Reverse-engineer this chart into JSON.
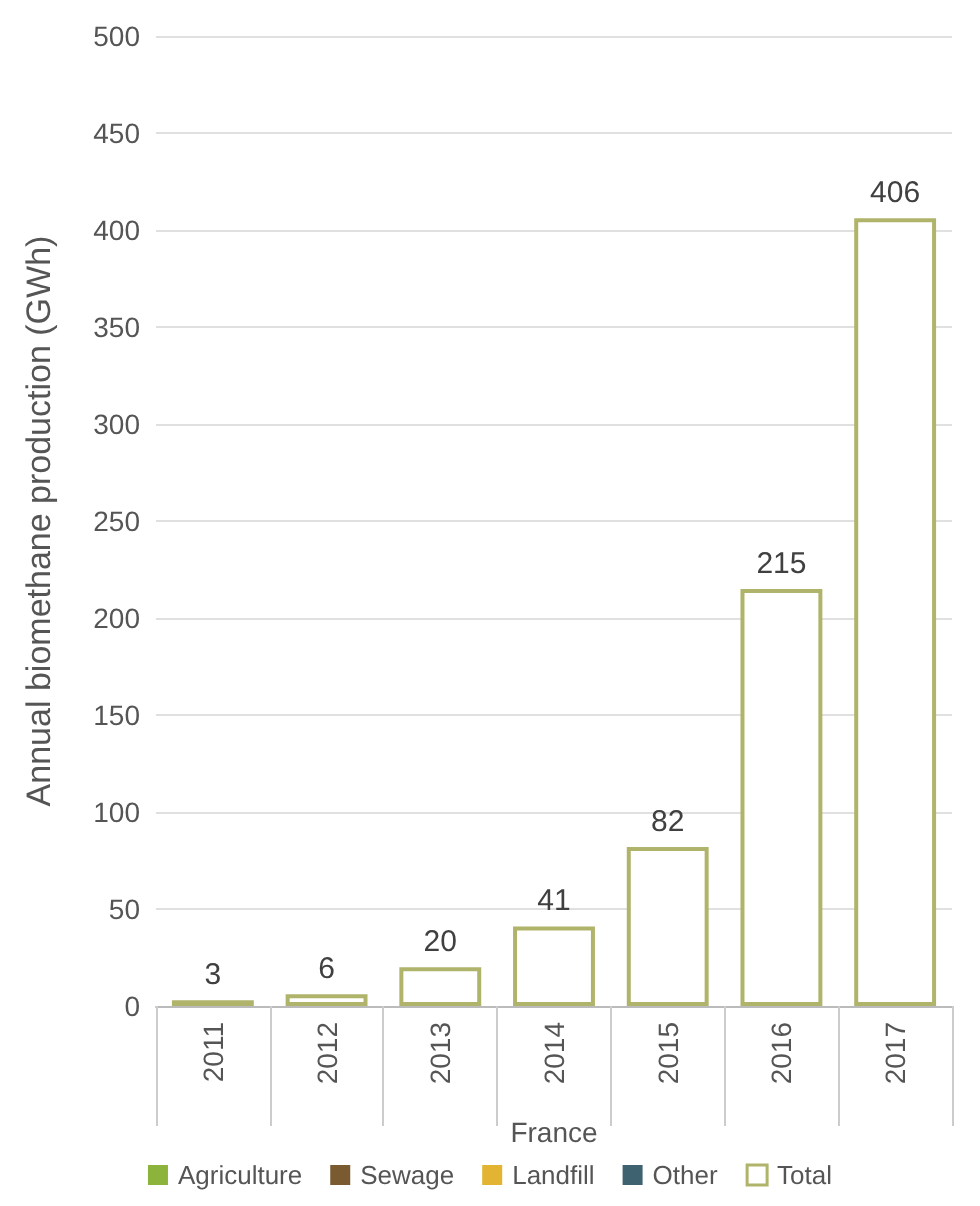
{
  "chart_data": {
    "type": "bar",
    "ylabel": "Annual biomethane production (GWh)",
    "xlabel": "France",
    "categories": [
      "2011",
      "2012",
      "2013",
      "2014",
      "2015",
      "2016",
      "2017"
    ],
    "series": [
      {
        "name": "Agriculture",
        "color": "#8cb43c",
        "values": [
          null,
          null,
          null,
          null,
          null,
          null,
          null
        ]
      },
      {
        "name": "Sewage",
        "color": "#7a5a30",
        "values": [
          null,
          null,
          null,
          null,
          null,
          null,
          null
        ]
      },
      {
        "name": "Landfill",
        "color": "#e2b431",
        "values": [
          null,
          null,
          null,
          null,
          null,
          null,
          null
        ]
      },
      {
        "name": "Other",
        "color": "#3f6270",
        "values": [
          null,
          null,
          null,
          null,
          null,
          null,
          null
        ]
      },
      {
        "name": "Total",
        "color": "#b0b46a",
        "values": [
          3,
          6,
          20,
          41,
          82,
          215,
          406
        ]
      }
    ],
    "stacked": true,
    "data_labels": true,
    "ylim": [
      0,
      500
    ],
    "yticks": [
      0,
      50,
      100,
      150,
      200,
      250,
      300,
      350,
      400,
      450,
      500
    ],
    "grid": "y",
    "legend": "bottom"
  }
}
